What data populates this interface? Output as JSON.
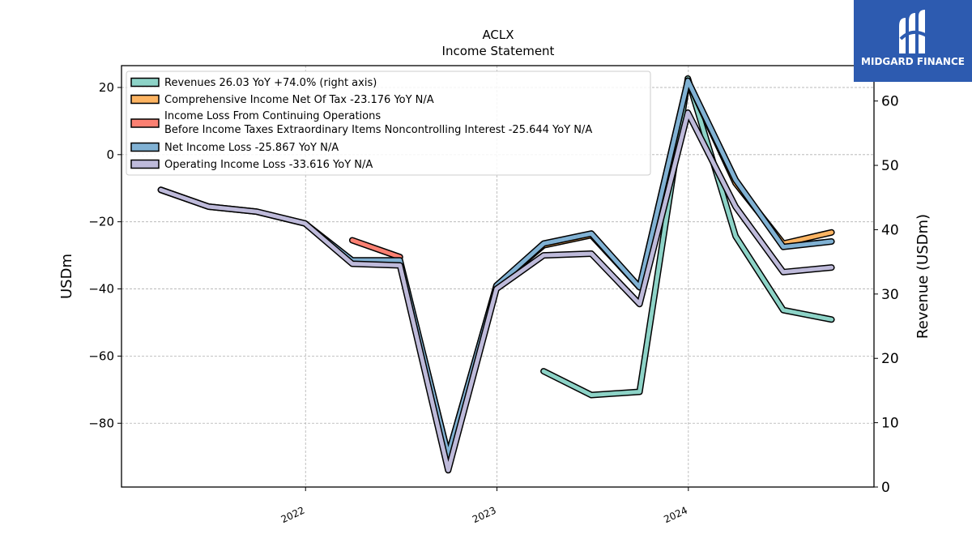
{
  "brand": {
    "name": "MIDGARD FINANCE",
    "background": "#2d5bb0"
  },
  "chart_data": {
    "type": "line",
    "title": "ACLX",
    "subtitle": "Income Statement",
    "ylabel": "USDm",
    "ylabel_right": "Revenue (USDm)",
    "ylim": [
      -99,
      26.5
    ],
    "ylim_right": [
      0,
      65.5
    ],
    "yticks": [
      20,
      0,
      -20,
      -40,
      -60,
      -80
    ],
    "yticks_right": [
      60,
      50,
      40,
      30,
      20,
      10,
      0
    ],
    "xticks": [
      "2022",
      "2023",
      "2024"
    ],
    "x_range": [
      "2021-01-15",
      "2024-12-20"
    ],
    "grid": true,
    "legend_position": "top-left",
    "series": [
      {
        "name": "Revenues  26.03 YoY +74.0% (right axis)",
        "color": "#8dd3c7",
        "axis": "right",
        "points": [
          [
            "2023-03-31",
            18
          ],
          [
            "2023-06-30",
            14.3
          ],
          [
            "2023-09-30",
            14.8
          ],
          [
            "2023-12-31",
            63.5
          ],
          [
            "2024-03-31",
            39
          ],
          [
            "2024-06-30",
            27.5
          ],
          [
            "2024-09-30",
            26.03
          ]
        ]
      },
      {
        "name": "Comprehensive Income Net Of Tax  -23.176 YoY N/A",
        "color": "#fdb462",
        "axis": "left",
        "points": [
          [
            "2022-03-31",
            -32
          ],
          [
            "2022-06-30",
            -32
          ],
          [
            "2022-09-30",
            -89.5
          ],
          [
            "2022-12-31",
            -39
          ],
          [
            "2023-03-31",
            -27
          ],
          [
            "2023-06-30",
            -24
          ],
          [
            "2023-09-30",
            -39.5
          ],
          [
            "2023-12-31",
            22
          ],
          [
            "2024-03-31",
            -8.5
          ],
          [
            "2024-06-30",
            -26.5
          ],
          [
            "2024-09-30",
            -23.176
          ]
        ]
      },
      {
        "name": "Income Loss From Continuing Operations\nBefore Income Taxes Extraordinary Items Noncontrolling Interest  -25.644 YoY N/A",
        "color": "#fb8072",
        "axis": "left",
        "points": [
          [
            "2022-03-31",
            -25.5
          ],
          [
            "2022-06-30",
            -30.5
          ]
        ]
      },
      {
        "name": "Net Income Loss  -25.867 YoY N/A",
        "color": "#80b1d3",
        "axis": "left",
        "points": [
          [
            "2021-03-31",
            -10.5
          ],
          [
            "2021-06-30",
            -15.5
          ],
          [
            "2021-09-30",
            -17
          ],
          [
            "2021-12-31",
            -20.5
          ],
          [
            "2022-03-31",
            -31.5
          ],
          [
            "2022-06-30",
            -31.5
          ],
          [
            "2022-09-30",
            -89.5
          ],
          [
            "2022-12-31",
            -39
          ],
          [
            "2023-03-31",
            -26.5
          ],
          [
            "2023-06-30",
            -23.5
          ],
          [
            "2023-09-30",
            -39.5
          ],
          [
            "2023-12-31",
            22
          ],
          [
            "2024-03-31",
            -7.5
          ],
          [
            "2024-06-30",
            -27.5
          ],
          [
            "2024-09-30",
            -25.867
          ]
        ]
      },
      {
        "name": "Operating Income Loss  -33.616 YoY N/A",
        "color": "#bebada",
        "axis": "left",
        "points": [
          [
            "2021-03-31",
            -10.5
          ],
          [
            "2021-06-30",
            -15.5
          ],
          [
            "2021-09-30",
            -17
          ],
          [
            "2021-12-31",
            -20.5
          ],
          [
            "2022-03-31",
            -32.5
          ],
          [
            "2022-06-30",
            -33
          ],
          [
            "2022-09-30",
            -94
          ],
          [
            "2022-12-31",
            -40
          ],
          [
            "2023-03-31",
            -30
          ],
          [
            "2023-06-30",
            -29.5
          ],
          [
            "2023-09-30",
            -44.5
          ],
          [
            "2023-12-31",
            12.5
          ],
          [
            "2024-03-31",
            -15.5
          ],
          [
            "2024-06-30",
            -35
          ],
          [
            "2024-09-30",
            -33.616
          ]
        ]
      }
    ]
  }
}
